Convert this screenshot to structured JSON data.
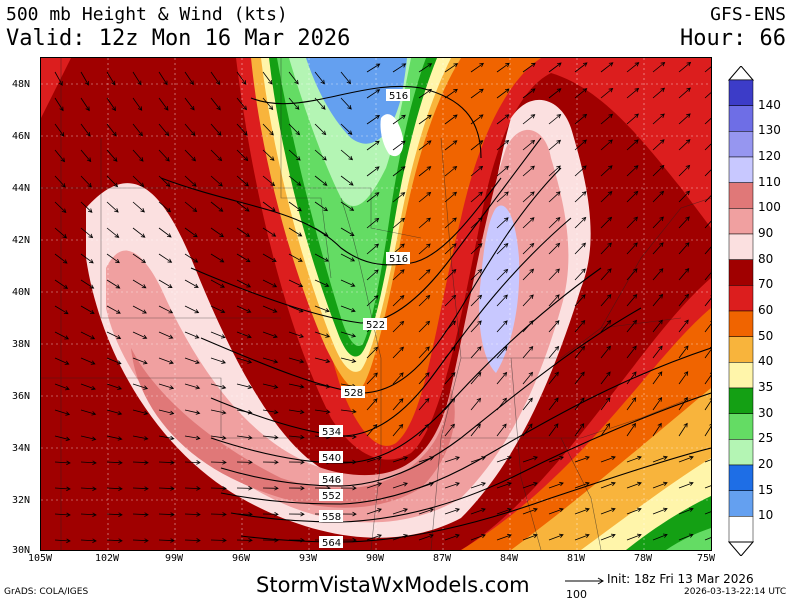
{
  "header": {
    "title": "500 mb Height & Wind (kts)",
    "valid": "Valid: 12z Mon 16 Mar 2026",
    "model": "GFS-ENS",
    "hour": "Hour: 66"
  },
  "map": {
    "lat_labels": [
      "48N",
      "46N",
      "44N",
      "42N",
      "40N",
      "38N",
      "36N",
      "34N",
      "32N",
      "30N"
    ],
    "lon_labels": [
      "105W",
      "102W",
      "99W",
      "96W",
      "93W",
      "90W",
      "87W",
      "84W",
      "81W",
      "78W",
      "75W"
    ],
    "height_contours": [
      "516",
      "516",
      "522",
      "528",
      "534",
      "540",
      "546",
      "552",
      "558",
      "564"
    ]
  },
  "colorbar": {
    "levels": [
      "140",
      "130",
      "120",
      "110",
      "100",
      "90",
      "80",
      "70",
      "60",
      "50",
      "40",
      "35",
      "30",
      "25",
      "20",
      "15",
      "10"
    ],
    "colors": [
      "#3c3cc8",
      "#6e6ee6",
      "#9696f0",
      "#c8c8ff",
      "#e07878",
      "#f0a0a0",
      "#fbe0e0",
      "#a00000",
      "#dc1e1e",
      "#f06400",
      "#f8b43c",
      "#fff5aa",
      "#14a014",
      "#64dc64",
      "#b4f5b4",
      "#1e6ee6",
      "#64a0f0",
      "#ffffff"
    ]
  },
  "footer": {
    "credit": "GrADS: COLA/IGES",
    "website": "StormVistaWxModels.com",
    "ref_vector": "100",
    "init": "Init: 18z Fri 13 Mar 2026",
    "stamp": "2026-03-13-22:14 UTC"
  },
  "icons": {
    "ref": "wind-reference-arrow",
    "cb_top": "colorbar-top-triangle",
    "cb_bottom": "colorbar-bottom-triangle"
  }
}
